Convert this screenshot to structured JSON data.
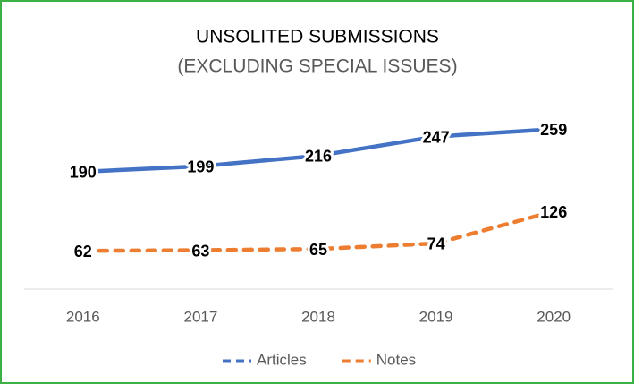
{
  "chart_data": {
    "type": "line",
    "title": "UNSOLITED SUBMISSIONS",
    "subtitle": "(EXCLUDING SPECIAL ISSUES)",
    "categories": [
      "2016",
      "2017",
      "2018",
      "2019",
      "2020"
    ],
    "series": [
      {
        "name": "Articles",
        "color": "#4472c4",
        "dashed": false,
        "values": [
          190,
          199,
          216,
          247,
          259
        ]
      },
      {
        "name": "Notes",
        "color": "#ed7d31",
        "dashed": true,
        "values": [
          62,
          63,
          65,
          74,
          126
        ]
      }
    ],
    "ylim": [
      0,
      300
    ],
    "legend": "bottom"
  }
}
